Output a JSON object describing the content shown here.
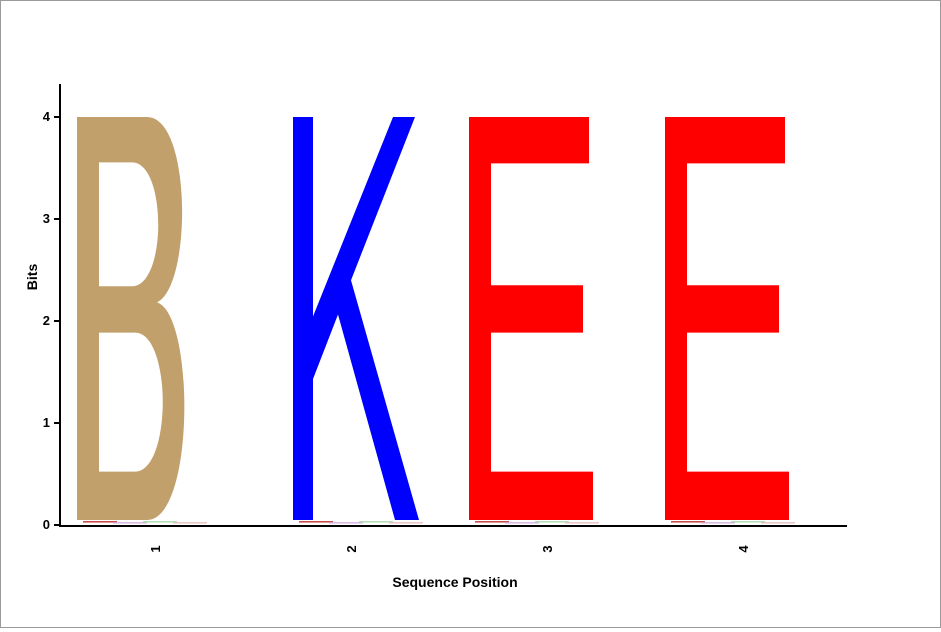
{
  "chart_data": {
    "type": "bar",
    "subtype": "sequence-logo",
    "title": "",
    "xlabel": "Sequence Position",
    "ylabel": "Bits",
    "ylim": [
      0,
      4.3
    ],
    "yticks": [
      "0",
      "1",
      "2",
      "3",
      "4"
    ],
    "categories": [
      "1",
      "2",
      "3",
      "4"
    ],
    "series": [
      {
        "values": [
          4,
          4,
          4,
          4
        ],
        "letters": [
          "B",
          "K",
          "E",
          "E"
        ],
        "colors": [
          "#c2a06c",
          "#0000ff",
          "#ff0000",
          "#ff0000"
        ]
      }
    ],
    "grid": false,
    "legend": "none"
  }
}
